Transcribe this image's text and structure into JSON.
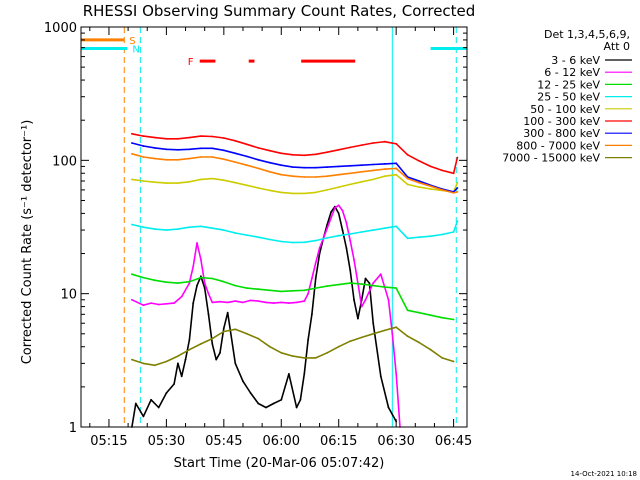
{
  "chart_data": {
    "type": "line",
    "title": "RHESSI Observing Summary Count Rates, Corrected",
    "ylabel": "Corrected Count Rate (s⁻¹ detector⁻¹)",
    "xlabel": "Start Time (20-Mar-06 05:07:42)",
    "y_scale": "log",
    "ylim": [
      1,
      1000
    ],
    "x_unit": "minutes after 05:00 UT",
    "xlim": [
      7.7,
      108.5
    ],
    "y_ticks": [
      "1",
      "10",
      "100",
      "1000"
    ],
    "x_ticks": [
      {
        "t": 15,
        "label": "05:15"
      },
      {
        "t": 30,
        "label": "05:30"
      },
      {
        "t": 45,
        "label": "05:45"
      },
      {
        "t": 60,
        "label": "06:00"
      },
      {
        "t": 75,
        "label": "06:15"
      },
      {
        "t": 90,
        "label": "06:30"
      },
      {
        "t": 105,
        "label": "06:45"
      }
    ],
    "legend_header": [
      "Det 1,3,4,5,6,9,",
      "Att 0"
    ],
    "legend_position": "right",
    "grid": false,
    "series": [
      {
        "name": "3 - 6 keV",
        "color": "#000000",
        "x": [
          21,
          22,
          24,
          26,
          28,
          30,
          32,
          33,
          34,
          35,
          36,
          37,
          38,
          39,
          40,
          41,
          42,
          43,
          44,
          45,
          46,
          48,
          50,
          52,
          54,
          56,
          58,
          60,
          62,
          64,
          65,
          66,
          67,
          68,
          69,
          70,
          71,
          72,
          73,
          74,
          75,
          76,
          77,
          78,
          79,
          80,
          81,
          82,
          83,
          84,
          86,
          88,
          90
        ],
        "y": [
          1,
          1.5,
          1.2,
          1.6,
          1.4,
          1.8,
          2.1,
          3.0,
          2.4,
          3.2,
          4.5,
          8.5,
          11.5,
          13.5,
          11,
          7,
          4.2,
          3.2,
          3.6,
          5.5,
          7.2,
          3.0,
          2.2,
          1.8,
          1.5,
          1.4,
          1.5,
          1.6,
          2.5,
          1.4,
          1.6,
          2.5,
          4.5,
          7,
          13,
          20,
          26,
          33,
          41,
          45,
          40,
          30,
          22,
          15,
          9,
          6.5,
          9,
          13,
          12,
          6,
          2.4,
          1.4,
          1.1
        ]
      },
      {
        "name": "6 - 12 keV",
        "color": "#ff00ff",
        "x": [
          21,
          24,
          26,
          28,
          30,
          32,
          34,
          36,
          37,
          38,
          39,
          40,
          41,
          42,
          44,
          46,
          48,
          50,
          52,
          54,
          56,
          58,
          60,
          62,
          64,
          66,
          67,
          68,
          69,
          70,
          71,
          72,
          73,
          74,
          75,
          76,
          77,
          78,
          79,
          80,
          81,
          82,
          84,
          86,
          88,
          89,
          90,
          91
        ],
        "y": [
          9,
          8.2,
          8.5,
          8.3,
          8.4,
          8.5,
          9.5,
          12,
          16,
          24,
          18,
          12,
          10,
          8.6,
          8.7,
          8.6,
          8.8,
          8.6,
          8.9,
          8.8,
          8.6,
          8.5,
          8.6,
          8.5,
          8.6,
          8.8,
          10,
          13,
          17,
          22,
          26,
          31,
          37,
          44,
          46,
          42,
          34,
          25,
          18,
          12,
          8,
          9,
          12,
          14,
          9,
          5,
          2.5,
          1
        ]
      },
      {
        "name": "12 - 25 keV",
        "color": "#00dd00",
        "x": [
          21,
          24,
          27,
          30,
          33,
          36,
          39,
          42,
          45,
          48,
          51,
          54,
          57,
          60,
          63,
          66,
          69,
          72,
          75,
          78,
          81,
          84,
          87,
          90,
          93,
          96,
          99,
          102,
          105
        ],
        "y": [
          14,
          13.2,
          12.6,
          12.2,
          12,
          12.3,
          13.2,
          13,
          12.3,
          11.5,
          11,
          10.8,
          10.6,
          10.4,
          10.5,
          10.6,
          11,
          11.4,
          11.7,
          12,
          11.8,
          11.5,
          11.2,
          11,
          7.5,
          7.2,
          6.9,
          6.6,
          6.4
        ]
      },
      {
        "name": "25 - 50 keV",
        "color": "#00eeee",
        "x": [
          21,
          24,
          27,
          30,
          33,
          36,
          39,
          42,
          45,
          48,
          51,
          54,
          57,
          60,
          63,
          66,
          69,
          72,
          75,
          78,
          81,
          84,
          87,
          90,
          93,
          96,
          99,
          102,
          105,
          106
        ],
        "y": [
          33,
          31.5,
          30.5,
          30,
          30.5,
          31.5,
          32,
          31,
          30,
          28.5,
          27.5,
          26.5,
          25.5,
          24.6,
          24.2,
          24.3,
          25,
          26.2,
          27.2,
          28,
          29,
          30,
          31,
          32,
          26,
          26.5,
          27,
          27.8,
          29,
          35
        ]
      },
      {
        "name": "50 - 100 keV",
        "color": "#cccc00",
        "x": [
          21,
          24,
          27,
          30,
          33,
          36,
          39,
          42,
          45,
          48,
          51,
          54,
          57,
          60,
          63,
          66,
          69,
          72,
          75,
          78,
          81,
          84,
          87,
          90,
          93,
          96,
          99,
          102,
          105,
          106
        ],
        "y": [
          72,
          70,
          68.5,
          67.5,
          67.5,
          69,
          72,
          73,
          71,
          68,
          65,
          62,
          59.5,
          57.5,
          56.5,
          56.5,
          57.5,
          60,
          63,
          66,
          69,
          72,
          76,
          78,
          66,
          63,
          61,
          59.5,
          58,
          68
        ]
      },
      {
        "name": "100 - 300 keV",
        "color": "#ff0000",
        "x": [
          21,
          24,
          27,
          30,
          33,
          36,
          39,
          42,
          45,
          48,
          51,
          54,
          57,
          60,
          63,
          66,
          69,
          72,
          75,
          78,
          81,
          84,
          87,
          90,
          93,
          96,
          99,
          102,
          105,
          106
        ],
        "y": [
          158,
          152,
          148,
          145,
          145,
          148,
          152,
          151,
          147,
          140,
          132,
          124,
          118,
          113,
          110,
          109,
          111,
          115,
          120,
          125,
          130,
          135,
          138,
          133,
          110,
          99,
          90,
          84,
          80,
          105
        ]
      },
      {
        "name": "300 - 800 keV",
        "color": "#0000ff",
        "x": [
          21,
          24,
          27,
          30,
          33,
          36,
          39,
          42,
          45,
          48,
          51,
          54,
          57,
          60,
          63,
          66,
          69,
          72,
          75,
          78,
          81,
          84,
          87,
          90,
          93,
          96,
          99,
          102,
          105,
          106
        ],
        "y": [
          135,
          128,
          124,
          121,
          120,
          121,
          123,
          123,
          119,
          113,
          107,
          101,
          96,
          92,
          89,
          88,
          88,
          89,
          90,
          91,
          92,
          93,
          94,
          95,
          75,
          70,
          65,
          61,
          58,
          62
        ]
      },
      {
        "name": "800 - 7000 keV",
        "color": "#ff8000",
        "x": [
          21,
          24,
          27,
          30,
          33,
          36,
          39,
          42,
          45,
          48,
          51,
          54,
          57,
          60,
          63,
          66,
          69,
          72,
          75,
          78,
          81,
          84,
          87,
          90,
          93,
          96,
          99,
          102,
          105,
          106
        ],
        "y": [
          112,
          106,
          103,
          101,
          101,
          103,
          106,
          106,
          102,
          97,
          92,
          87,
          82,
          78,
          76,
          75,
          75,
          76,
          78,
          80,
          82,
          84,
          86,
          87,
          73,
          68,
          64,
          60,
          57,
          58
        ]
      },
      {
        "name": "7000 - 15000 keV",
        "color": "#808000",
        "x": [
          21,
          24,
          27,
          30,
          33,
          36,
          39,
          42,
          45,
          48,
          51,
          54,
          57,
          60,
          63,
          66,
          69,
          72,
          75,
          78,
          81,
          84,
          87,
          90,
          93,
          96,
          99,
          102,
          105
        ],
        "y": [
          3.2,
          3.0,
          2.9,
          3.1,
          3.4,
          3.8,
          4.2,
          4.6,
          5.2,
          5.4,
          5.0,
          4.6,
          4.0,
          3.6,
          3.4,
          3.3,
          3.3,
          3.6,
          4.0,
          4.4,
          4.7,
          5.0,
          5.3,
          5.6,
          4.8,
          4.3,
          3.8,
          3.3,
          3.1
        ]
      }
    ],
    "flags": [
      {
        "letter": "S",
        "color": "#ff8000",
        "bars": [
          [
            7.7,
            19.0
          ]
        ],
        "level": 800
      },
      {
        "letter": "N",
        "color": "#00eeee",
        "bars": [
          [
            7.7,
            19.8
          ],
          [
            23.2,
            23.2
          ],
          [
            89.0,
            89.0
          ],
          [
            99.0,
            108.5
          ]
        ],
        "level": 690
      },
      {
        "letter": "F",
        "color": "#ff0000",
        "bars": [
          [
            38.7,
            42.8
          ],
          [
            51.5,
            53.0
          ],
          [
            65.2,
            79.3
          ]
        ],
        "level": 555
      }
    ],
    "vlines": [
      {
        "t": 19.0,
        "color": "#ff8000",
        "style": "dashed"
      },
      {
        "t": 23.2,
        "color": "#00eeee",
        "style": "dashed"
      },
      {
        "t": 89.0,
        "color": "#00eeee",
        "style": "solid"
      },
      {
        "t": 105.7,
        "color": "#00eeee",
        "style": "dashed"
      }
    ]
  },
  "footer_date": "14-Oct-2021 10:18"
}
